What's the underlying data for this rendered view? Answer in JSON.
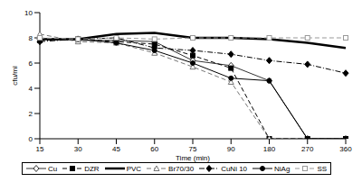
{
  "chart_data": {
    "type": "line",
    "x_label": "Time (min)",
    "y_label": "cfu/ml",
    "categories": [
      15,
      30,
      45,
      60,
      75,
      90,
      180,
      270,
      360
    ],
    "ylim": [
      0,
      10
    ],
    "yticks": [
      0,
      2,
      4,
      6,
      8,
      10
    ],
    "grid": false,
    "legend": "bottom",
    "series": [
      {
        "name": "Cu",
        "color": "#333333",
        "marker": "diamond-open",
        "line_style": "solid",
        "values": [
          7.9,
          7.8,
          7.8,
          7.7,
          6.2,
          5.8,
          4.6,
          0,
          0
        ]
      },
      {
        "name": "DZR",
        "color": "#000000",
        "marker": "square-filled",
        "line_style": "dashed",
        "values": [
          7.8,
          7.9,
          7.7,
          7.5,
          6.6,
          5.6,
          0,
          0,
          0
        ]
      },
      {
        "name": "PVC",
        "color": "#000000",
        "marker": "none",
        "line_style": "thick",
        "values": [
          7.9,
          7.9,
          8.3,
          8.4,
          8.0,
          8.0,
          7.9,
          7.6,
          7.2
        ]
      },
      {
        "name": "Br70/30",
        "color": "#777777",
        "marker": "triangle-open",
        "line_style": "dashed",
        "values": [
          8.3,
          7.7,
          7.6,
          6.8,
          5.7,
          4.5,
          0,
          0,
          0
        ]
      },
      {
        "name": "CuNi 10",
        "color": "#000000",
        "marker": "diamond-filled",
        "line_style": "dashdot",
        "values": [
          7.7,
          7.9,
          8.0,
          7.2,
          7.0,
          6.7,
          6.2,
          5.9,
          5.2
        ]
      },
      {
        "name": "NiAg",
        "color": "#000000",
        "marker": "circle-filled",
        "line_style": "solid",
        "values": [
          7.9,
          7.9,
          7.6,
          7.0,
          6.0,
          4.8,
          4.6,
          0,
          0
        ]
      },
      {
        "name": "SS",
        "color": "#999999",
        "marker": "square-open",
        "line_style": "dashed",
        "values": [
          8.0,
          7.9,
          8.0,
          7.9,
          8.0,
          8.0,
          8.0,
          8.0,
          8.0
        ]
      }
    ]
  }
}
